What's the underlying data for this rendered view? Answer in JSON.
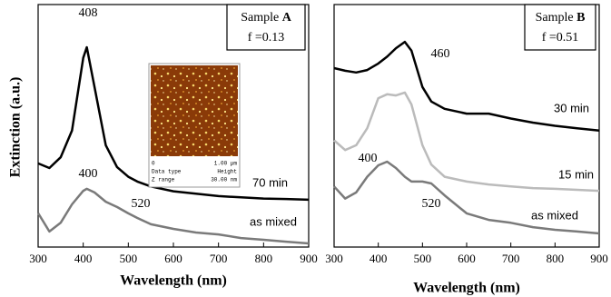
{
  "chart_data": [
    {
      "type": "line",
      "ylabel": "Extinction (a.u.)",
      "xlabel": "Wavelength (nm)",
      "legend": {
        "prefix": "Sample",
        "name": "A",
        "fraction": "f =0.13"
      },
      "x": [
        300,
        325,
        350,
        375,
        400,
        408,
        425,
        450,
        475,
        500,
        520,
        550,
        600,
        650,
        700,
        750,
        800,
        850,
        900
      ],
      "xlim": [
        300,
        900
      ],
      "xticks": [
        300,
        400,
        500,
        600,
        700,
        800,
        900
      ],
      "ylim": [
        0,
        1
      ],
      "series": [
        {
          "name": "70 min",
          "color": "#000000",
          "values": [
            0.345,
            0.326,
            0.37,
            0.48,
            0.78,
            0.824,
            0.66,
            0.42,
            0.33,
            0.29,
            0.27,
            0.25,
            0.23,
            0.22,
            0.21,
            0.205,
            0.2,
            0.198,
            0.195
          ]
        },
        {
          "name": "as mixed",
          "color": "#7a7a7a",
          "values": [
            0.14,
            0.064,
            0.1,
            0.176,
            0.232,
            0.24,
            0.225,
            0.187,
            0.165,
            0.139,
            0.12,
            0.094,
            0.075,
            0.06,
            0.052,
            0.037,
            0.03,
            0.022,
            0.015
          ]
        }
      ],
      "annotations": [
        "408",
        "400",
        "520"
      ],
      "inset": [
        "0",
        "1.00 µm",
        "Data type",
        "Height",
        "Z range",
        "30.00 nm"
      ]
    },
    {
      "type": "line",
      "xlabel": "Wavelength (nm)",
      "legend": {
        "prefix": "Sample",
        "name": "B",
        "fraction": "f =0.51"
      },
      "x": [
        300,
        325,
        350,
        375,
        400,
        420,
        440,
        460,
        475,
        500,
        520,
        550,
        600,
        650,
        700,
        750,
        800,
        850,
        900
      ],
      "xlim": [
        300,
        900
      ],
      "xticks": [
        300,
        400,
        500,
        600,
        700,
        800,
        900
      ],
      "ylim": [
        0,
        1
      ],
      "series": [
        {
          "name": "30 min",
          "color": "#000000",
          "values": [
            0.738,
            0.727,
            0.72,
            0.73,
            0.757,
            0.785,
            0.82,
            0.846,
            0.81,
            0.66,
            0.6,
            0.57,
            0.55,
            0.55,
            0.53,
            0.513,
            0.5,
            0.49,
            0.48
          ]
        },
        {
          "name": "15 min",
          "color": "#bbbbbb",
          "values": [
            0.44,
            0.4,
            0.42,
            0.49,
            0.614,
            0.63,
            0.625,
            0.637,
            0.588,
            0.42,
            0.34,
            0.29,
            0.27,
            0.258,
            0.25,
            0.243,
            0.24,
            0.236,
            0.232
          ]
        },
        {
          "name": "as mixed",
          "color": "#7a7a7a",
          "values": [
            0.25,
            0.2,
            0.225,
            0.29,
            0.337,
            0.352,
            0.326,
            0.29,
            0.27,
            0.27,
            0.262,
            0.213,
            0.139,
            0.112,
            0.1,
            0.082,
            0.071,
            0.064,
            0.056
          ]
        }
      ],
      "annotations": [
        "460",
        "400",
        "520"
      ]
    }
  ]
}
